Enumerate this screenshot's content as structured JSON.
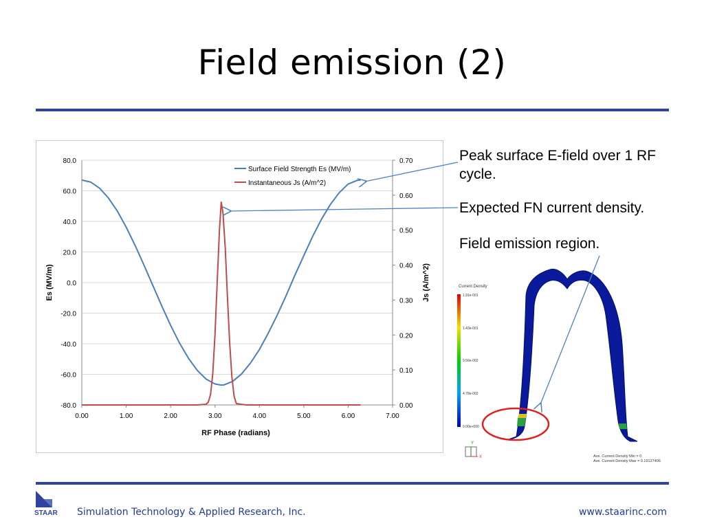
{
  "slide": {
    "title": "Field emission (2)",
    "notes": [
      "Peak surface E-field over 1 RF cycle.",
      "Expected FN current density.",
      "Field emission region."
    ],
    "footer": {
      "logo_text": "STAAR",
      "company": "Simulation Technology & Applied Research, Inc.",
      "url": "www.staarinc.com"
    }
  },
  "colors": {
    "accent_blue": "#2e44a0",
    "es_series": "#4a7ebb",
    "js_series": "#be4b48",
    "callout_line": "#4f81bd",
    "highlight_ellipse": "#e02020"
  },
  "chart_data": {
    "type": "line",
    "xlabel": "RF Phase (radians)",
    "ylabel_left": "Es (MV/m)",
    "ylabel_right": "Js (A/m^2)",
    "xlim": [
      0,
      7
    ],
    "ylim_left": [
      -80,
      80
    ],
    "ylim_right": [
      0,
      0.7
    ],
    "x_ticks": [
      "0.00",
      "1.00",
      "2.00",
      "3.00",
      "4.00",
      "5.00",
      "6.00",
      "7.00"
    ],
    "y_left_ticks": [
      "80.0",
      "60.0",
      "40.0",
      "20.0",
      "0.0",
      "-20.0",
      "-40.0",
      "-60.0",
      "-80.0"
    ],
    "y_right_ticks": [
      "0.70",
      "0.60",
      "0.50",
      "0.40",
      "0.30",
      "0.20",
      "0.10",
      "0.00"
    ],
    "grid": "horizontal",
    "legend_position": "top-right",
    "series": [
      {
        "name": "Surface Field Strength Es (MV/m)",
        "axis": "left",
        "x": [
          0.0,
          0.2,
          0.4,
          0.6,
          0.8,
          1.0,
          1.2,
          1.4,
          1.6,
          1.8,
          2.0,
          2.2,
          2.4,
          2.6,
          2.8,
          3.0,
          3.14,
          3.2,
          3.4,
          3.6,
          3.8,
          4.0,
          4.2,
          4.4,
          4.6,
          4.8,
          5.0,
          5.2,
          5.4,
          5.6,
          5.8,
          6.0,
          6.2,
          6.28
        ],
        "y": [
          67.0,
          65.7,
          61.7,
          55.3,
          46.7,
          36.2,
          24.3,
          11.4,
          -1.9,
          -15.2,
          -27.9,
          -39.5,
          -49.4,
          -57.4,
          -63.1,
          -66.3,
          -67.0,
          -66.9,
          -64.6,
          -59.7,
          -52.6,
          -43.8,
          -33.1,
          -21.4,
          -8.7,
          4.8,
          17.6,
          30.2,
          41.5,
          51.1,
          58.8,
          64.4,
          66.8,
          67.0
        ]
      },
      {
        "name": "Instantaneous Js (A/m^2)",
        "axis": "right",
        "x": [
          0.0,
          2.6,
          2.8,
          2.85,
          2.9,
          2.95,
          3.0,
          3.05,
          3.1,
          3.14,
          3.18,
          3.23,
          3.28,
          3.33,
          3.38,
          3.43,
          3.48,
          3.7,
          6.28
        ],
        "y": [
          0.0,
          0.0,
          0.002,
          0.008,
          0.03,
          0.09,
          0.2,
          0.35,
          0.5,
          0.58,
          0.55,
          0.45,
          0.31,
          0.18,
          0.08,
          0.025,
          0.004,
          0.0,
          0.0
        ]
      }
    ]
  },
  "simulation": {
    "legend_title": "Current Density",
    "legend_values": [
      "1.91e-001",
      "1.43e-001",
      "9.56e-002",
      "4.78e-002",
      "0.00e+000"
    ],
    "axis_y": "Y",
    "axis_x": "X",
    "stats": [
      "Ave. Current Density Min = 0",
      "Ave. Current Density Max = 0.19127406"
    ]
  }
}
